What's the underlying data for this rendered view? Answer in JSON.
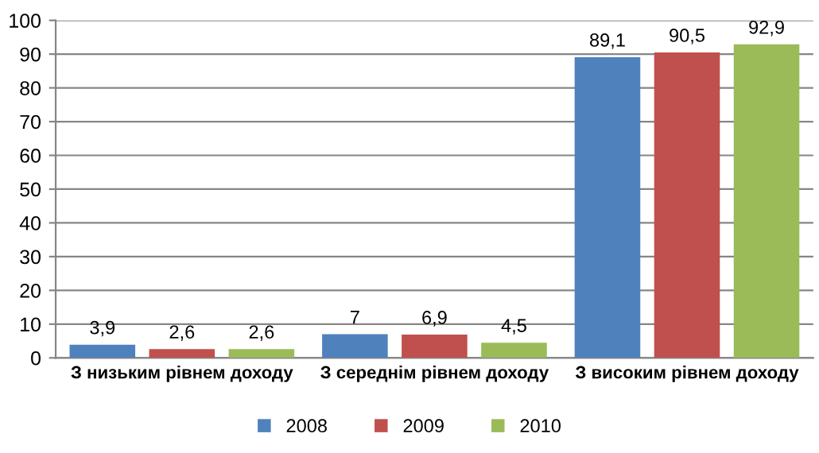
{
  "chart_data": {
    "type": "bar",
    "categories": [
      "З низьким рівнем доходу",
      "З середнім рівнем доходу",
      "З високим рівнем доходу"
    ],
    "series": [
      {
        "name": "2008",
        "color": "#4f81bd",
        "values": [
          3.9,
          7,
          89.1
        ],
        "value_labels": [
          "3,9",
          "7",
          "89,1"
        ]
      },
      {
        "name": "2009",
        "color": "#c0504d",
        "values": [
          2.6,
          6.9,
          90.5
        ],
        "value_labels": [
          "2,6",
          "6,9",
          "90,5"
        ]
      },
      {
        "name": "2010",
        "color": "#9bbb59",
        "values": [
          2.6,
          4.5,
          92.9
        ],
        "value_labels": [
          "2,6",
          "4,5",
          "92,9"
        ]
      }
    ],
    "ylim": [
      0,
      100
    ],
    "yticks": [
      0,
      10,
      20,
      30,
      40,
      50,
      60,
      70,
      80,
      90,
      100
    ],
    "grid": "y",
    "legend": "bottom"
  }
}
